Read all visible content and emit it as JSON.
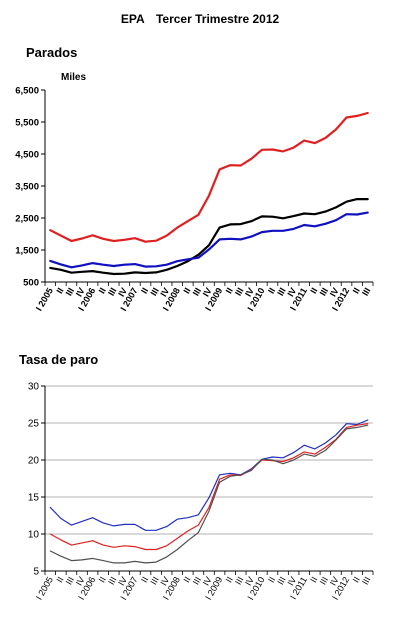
{
  "header": {
    "source": "EPA",
    "period": "Tercer Trimestre 2012"
  },
  "quarter_labels": [
    "I",
    "II",
    "III",
    "IV",
    "I",
    "II",
    "III",
    "IV",
    "I",
    "II",
    "III",
    "IV",
    "I",
    "II",
    "III",
    "IV",
    "I",
    "II",
    "III",
    "IV",
    "I",
    "II",
    "III",
    "IV",
    "I",
    "II",
    "III",
    "IV",
    "I",
    "II",
    "III"
  ],
  "year_labels": [
    "2005",
    "2006",
    "2007",
    "2008",
    "2009",
    "2010",
    "2011",
    "2012"
  ],
  "chart_data": [
    {
      "type": "line",
      "title": "Parados",
      "ylabel": "Miles",
      "y_ticks": [
        "6,500",
        "5,500",
        "4,500",
        "3,500",
        "2,500",
        "1,500",
        "500"
      ],
      "ylim": [
        500,
        6500
      ],
      "grid": false,
      "legend": "none",
      "series": [
        {
          "color": "#e02020",
          "values": [
            2120,
            1950,
            1780,
            1860,
            1960,
            1850,
            1780,
            1820,
            1870,
            1760,
            1790,
            1950,
            2200,
            2400,
            2600,
            3200,
            4020,
            4150,
            4140,
            4350,
            4630,
            4640,
            4580,
            4700,
            4920,
            4840,
            5000,
            5270,
            5640,
            5690,
            5780
          ]
        },
        {
          "color": "#000000",
          "values": [
            940,
            880,
            790,
            820,
            840,
            790,
            750,
            760,
            800,
            780,
            800,
            880,
            1000,
            1150,
            1350,
            1650,
            2200,
            2300,
            2310,
            2400,
            2550,
            2540,
            2490,
            2560,
            2640,
            2620,
            2700,
            2830,
            3010,
            3090,
            3090
          ]
        },
        {
          "color": "#1010c0",
          "values": [
            1160,
            1050,
            960,
            1020,
            1090,
            1040,
            1000,
            1040,
            1060,
            980,
            990,
            1040,
            1150,
            1210,
            1260,
            1520,
            1830,
            1850,
            1830,
            1920,
            2060,
            2100,
            2100,
            2160,
            2280,
            2240,
            2320,
            2430,
            2620,
            2610,
            2670
          ]
        }
      ]
    },
    {
      "type": "line",
      "title": "Tasa de paro",
      "ylabel": "",
      "y_ticks": [
        "30",
        "25",
        "20",
        "15",
        "10",
        "5"
      ],
      "ylim": [
        5,
        30
      ],
      "grid": true,
      "legend": "none",
      "series": [
        {
          "color": "#2030c0",
          "values": [
            13.6,
            12.1,
            11.2,
            11.7,
            12.2,
            11.5,
            11.1,
            11.3,
            11.3,
            10.5,
            10.5,
            11.0,
            12.0,
            12.2,
            12.6,
            14.9,
            18.0,
            18.2,
            18.0,
            18.8,
            20.1,
            20.4,
            20.3,
            21.0,
            22.0,
            21.5,
            22.3,
            23.4,
            24.9,
            24.8,
            25.4
          ]
        },
        {
          "color": "#e02020",
          "values": [
            10.0,
            9.2,
            8.5,
            8.8,
            9.1,
            8.5,
            8.2,
            8.4,
            8.3,
            7.9,
            7.9,
            8.4,
            9.4,
            10.4,
            11.2,
            13.6,
            17.4,
            18.0,
            17.9,
            18.7,
            20.0,
            19.9,
            19.8,
            20.3,
            21.1,
            20.8,
            21.7,
            22.8,
            24.4,
            24.7,
            24.9
          ]
        },
        {
          "color": "#505050",
          "values": [
            7.7,
            7.0,
            6.4,
            6.5,
            6.7,
            6.4,
            6.1,
            6.1,
            6.3,
            6.1,
            6.2,
            6.9,
            7.9,
            9.1,
            10.2,
            13.1,
            17.0,
            17.8,
            18.0,
            18.6,
            20.1,
            20.0,
            19.5,
            20.0,
            20.8,
            20.5,
            21.3,
            22.7,
            24.2,
            24.4,
            24.7
          ]
        }
      ]
    }
  ]
}
